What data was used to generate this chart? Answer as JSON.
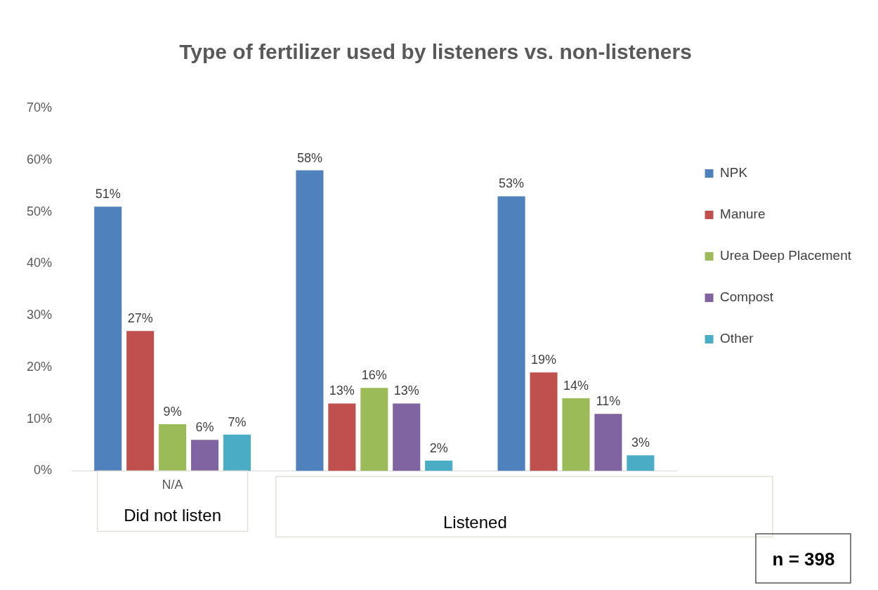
{
  "chart_data": {
    "type": "bar",
    "title": "Type of fertilizer used by listeners vs. non-listeners",
    "categories": [
      "N/A",
      null,
      null
    ],
    "series": [
      {
        "name": "NPK",
        "color": "#4f81bd",
        "values": [
          51,
          58,
          53
        ],
        "value_labels": [
          "51%",
          "58%",
          "53%"
        ]
      },
      {
        "name": "Manure",
        "color": "#c0504d",
        "values": [
          27,
          13,
          19
        ],
        "value_labels": [
          "27%",
          "13%",
          "19%"
        ]
      },
      {
        "name": "Urea Deep Placement",
        "color": "#9bbb59",
        "values": [
          9,
          16,
          14
        ],
        "value_labels": [
          "9%",
          "16%",
          "14%"
        ]
      },
      {
        "name": "Compost",
        "color": "#8064a2",
        "values": [
          6,
          13,
          11
        ],
        "value_labels": [
          "6%",
          "13%",
          "11%"
        ]
      },
      {
        "name": "Other",
        "color": "#4bacc6",
        "values": [
          7,
          2,
          3
        ],
        "value_labels": [
          "7%",
          "2%",
          "3%"
        ]
      }
    ],
    "ylim": [
      0,
      70
    ],
    "yticks": [
      {
        "value": 0,
        "label": "0%"
      },
      {
        "value": 10,
        "label": "10%"
      },
      {
        "value": 20,
        "label": "20%"
      },
      {
        "value": 30,
        "label": "30%"
      },
      {
        "value": 40,
        "label": "40%"
      },
      {
        "value": 50,
        "label": "50%"
      },
      {
        "value": 60,
        "label": "60%"
      },
      {
        "value": 70,
        "label": "70%"
      }
    ],
    "grid": false,
    "legend": "right",
    "annotations": [
      "Did not listen",
      "Listened",
      "n = 398"
    ]
  }
}
